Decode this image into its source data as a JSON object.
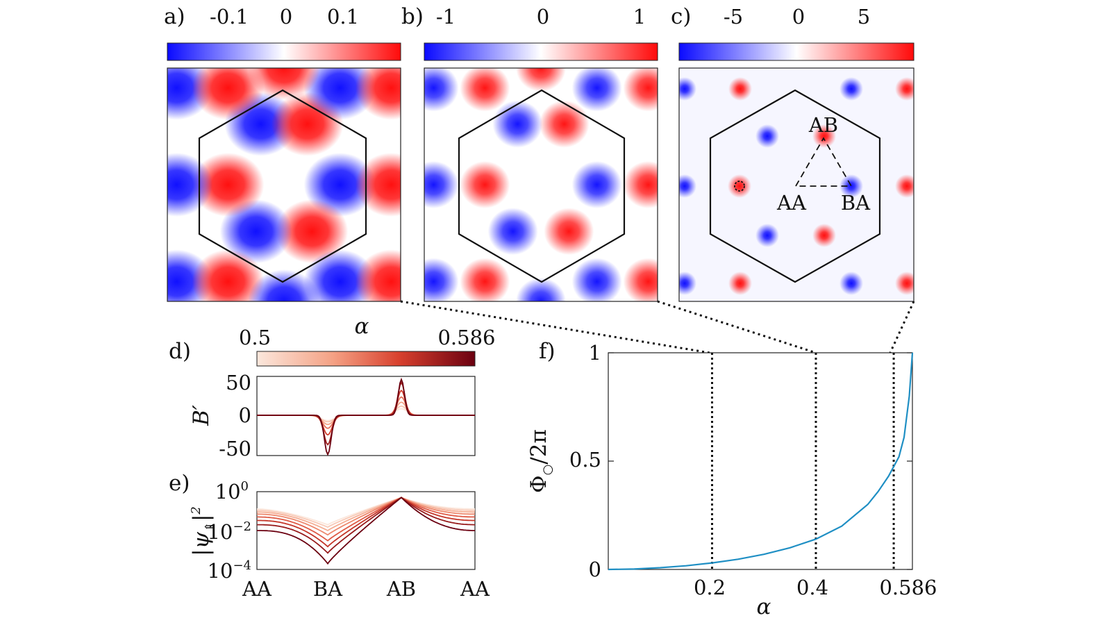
{
  "panels": {
    "a": {
      "label": "a)",
      "colorbar_ticks": [
        "-0.1",
        "0",
        "0.1"
      ],
      "colorbar_range": [
        -0.15,
        0.15
      ],
      "map_style": "broad triangular lobes"
    },
    "b": {
      "label": "b)",
      "colorbar_ticks": [
        "-1",
        "0",
        "1"
      ],
      "colorbar_range": [
        -1.15,
        1.15
      ],
      "map_style": "round blobs"
    },
    "c": {
      "label": "c)",
      "colorbar_ticks": [
        "-5",
        "0",
        "5"
      ],
      "colorbar_range": [
        -6.4,
        6.4
      ],
      "map_style": "sharp peaks",
      "site_labels": [
        "AB",
        "AA",
        "BA"
      ]
    },
    "d": {
      "label": "d)",
      "colorbar_title": "α",
      "colorbar_ticks": [
        "0.5",
        "0.586"
      ],
      "ylabel": "B′",
      "yticks": [
        "50",
        "0",
        "-50"
      ]
    },
    "e": {
      "label": "e)",
      "ylabel_base": "|ψ",
      "ylabel_sub": "⇑",
      "ylabel_end": "|",
      "ylabel_sup": "2",
      "yticks": [
        {
          "base": "10",
          "exp": "0"
        },
        {
          "base": "10",
          "exp": "−2"
        },
        {
          "base": "10",
          "exp": "−4"
        }
      ],
      "xticks": [
        "AA",
        "BA",
        "AB",
        "AA"
      ]
    },
    "f": {
      "label": "f)",
      "ylabel_base": "Φ",
      "ylabel_sub": "○",
      "ylabel_end": "/2π",
      "xlabel": "α",
      "yticks": [
        "1",
        "0.5",
        "0"
      ],
      "xticks": [
        "0.2",
        "0.4",
        "0.586"
      ]
    }
  },
  "colors": {
    "negative": "#1a1aff",
    "positive": "#ff2020",
    "curve": "#1f8fc4",
    "alpha_light": "#fbe3d8",
    "alpha_dark": "#6b0010"
  },
  "chart_data": [
    {
      "type": "line",
      "panel": "f",
      "xlabel": "α",
      "ylabel": "Φ○/2π",
      "xlim": [
        0,
        0.586
      ],
      "ylim": [
        0,
        1
      ],
      "series": [
        {
          "x": [
            0,
            0.05,
            0.1,
            0.15,
            0.2,
            0.25,
            0.3,
            0.35,
            0.4,
            0.45,
            0.5,
            0.52,
            0.54,
            0.56,
            0.57,
            0.58,
            0.586
          ],
          "values": [
            0,
            0.002,
            0.008,
            0.017,
            0.03,
            0.047,
            0.07,
            0.1,
            0.14,
            0.2,
            0.3,
            0.36,
            0.43,
            0.52,
            0.61,
            0.8,
            1.0
          ]
        }
      ],
      "markers": [
        {
          "x": 0.2,
          "style": "dotted vertical",
          "panel": "a"
        },
        {
          "x": 0.4,
          "style": "dotted vertical",
          "panel": "b"
        },
        {
          "x": 0.55,
          "style": "dotted vertical",
          "panel": "c"
        }
      ]
    },
    {
      "type": "line",
      "panel": "d",
      "ylabel": "B′",
      "ylim": [
        -60,
        60
      ],
      "x": [
        "AA",
        "BA",
        "AB",
        "AA"
      ],
      "peaks": {
        "alpha": [
          0.5,
          0.52,
          0.54,
          0.56,
          0.57,
          0.58,
          0.586
        ],
        "ab_peak": [
          10,
          14,
          20,
          28,
          38,
          50,
          55
        ],
        "ba_dip": [
          -8,
          -10,
          -14,
          -20,
          -30,
          -45,
          -60
        ]
      }
    },
    {
      "type": "line",
      "panel": "e",
      "yscale": "log",
      "ylim": [
        0.0001,
        1
      ],
      "x": [
        "AA",
        "BA",
        "AB",
        "AA"
      ],
      "curves": {
        "alpha": [
          0.5,
          0.515,
          0.53,
          0.545,
          0.56,
          0.57,
          0.578,
          0.586
        ],
        "aa_level": [
          0.13,
          0.11,
          0.09,
          0.07,
          0.05,
          0.033,
          0.02,
          0.01
        ],
        "ba_min": [
          0.02,
          0.015,
          0.01,
          0.006,
          0.003,
          0.0015,
          0.0007,
          0.0002
        ],
        "ab_peak": 0.5
      }
    }
  ]
}
